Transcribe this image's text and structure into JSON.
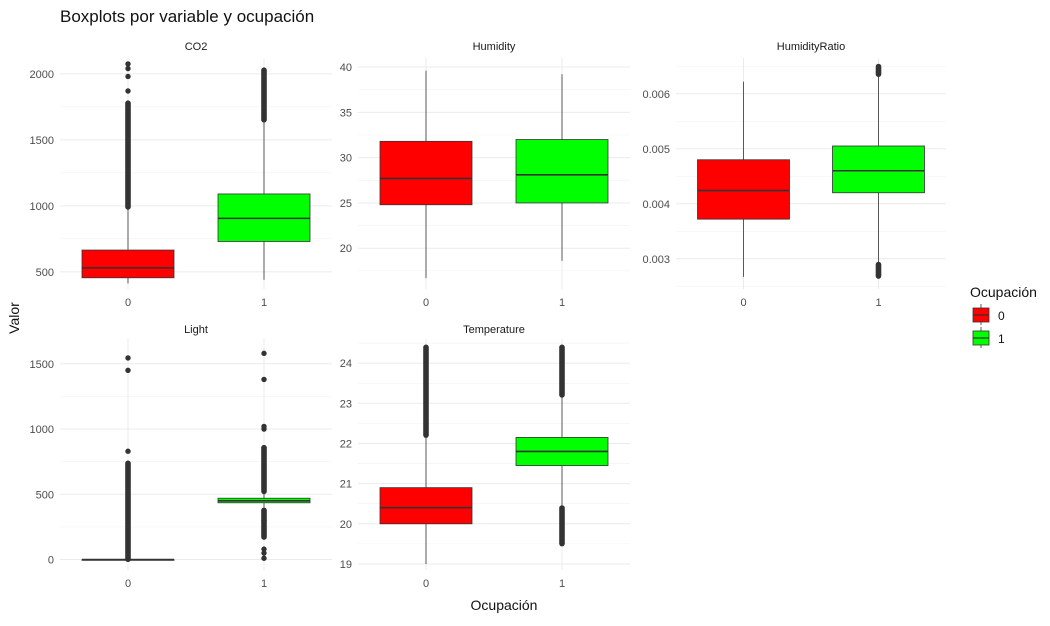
{
  "chart_data": {
    "type": "boxplot",
    "title": "Boxplots por variable y ocupación",
    "xlabel": "Ocupación",
    "ylabel": "Valor",
    "grid": true,
    "legend": {
      "title": "Ocupación",
      "placement": "right",
      "entries": [
        {
          "label": "0",
          "color": "#ff0000"
        },
        {
          "label": "1",
          "color": "#00ff00"
        }
      ]
    },
    "categories": [
      "0",
      "1"
    ],
    "panels": [
      {
        "name": "CO2",
        "ylim": [
          370,
          2120
        ],
        "yticks": [
          500,
          1000,
          1500,
          2000
        ],
        "yticklabels": [
          "500",
          "1000",
          "1500",
          "2000"
        ],
        "boxes": [
          {
            "group": "0",
            "color": "#ff0000",
            "min": 412,
            "q1": 455,
            "median": 530,
            "q3": 665,
            "max": 990,
            "outlier_ranges": [
              [
                990,
                1780
              ]
            ],
            "outliers": [
              1870,
              1980,
              2040,
              2075
            ]
          },
          {
            "group": "1",
            "color": "#00ff00",
            "min": 440,
            "q1": 730,
            "median": 905,
            "q3": 1090,
            "max": 1650,
            "outlier_ranges": [
              [
                1650,
                2030
              ]
            ],
            "outliers": []
          }
        ]
      },
      {
        "name": "Humidity",
        "ylim": [
          15.5,
          41
        ],
        "yticks": [
          20,
          25,
          30,
          35,
          40
        ],
        "yticklabels": [
          "20",
          "25",
          "30",
          "35",
          "40"
        ],
        "boxes": [
          {
            "group": "0",
            "color": "#ff0000",
            "min": 16.7,
            "q1": 24.8,
            "median": 27.7,
            "q3": 31.8,
            "max": 39.6,
            "outlier_ranges": [],
            "outliers": []
          },
          {
            "group": "1",
            "color": "#00ff00",
            "min": 18.6,
            "q1": 25.0,
            "median": 28.1,
            "q3": 32.0,
            "max": 39.2,
            "outlier_ranges": [],
            "outliers": []
          }
        ]
      },
      {
        "name": "HumidityRatio",
        "ylim": [
          0.00245,
          0.00665
        ],
        "yticks": [
          0.003,
          0.004,
          0.005,
          0.006
        ],
        "yticklabels": [
          "0.003",
          "0.004",
          "0.005",
          "0.006"
        ],
        "boxes": [
          {
            "group": "0",
            "color": "#ff0000",
            "min": 0.00267,
            "q1": 0.00372,
            "median": 0.00424,
            "q3": 0.0048,
            "max": 0.00622,
            "outlier_ranges": [],
            "outliers": []
          },
          {
            "group": "1",
            "color": "#00ff00",
            "min": 0.0029,
            "q1": 0.0042,
            "median": 0.0046,
            "q3": 0.00505,
            "max": 0.00635,
            "outlier_ranges": [
              [
                0.00635,
                0.0065
              ],
              [
                0.00268,
                0.0029
              ]
            ],
            "outliers": []
          }
        ]
      },
      {
        "name": "Light",
        "ylim": [
          -80,
          1690
        ],
        "yticks": [
          0,
          500,
          1000,
          1500
        ],
        "yticklabels": [
          "0",
          "500",
          "1000",
          "1500"
        ],
        "boxes": [
          {
            "group": "0",
            "color": "#ff0000",
            "min": 0,
            "q1": 0,
            "median": 0,
            "q3": 0,
            "max": 0,
            "outlier_ranges": [
              [
                0,
                740
              ]
            ],
            "outliers": [
              830,
              1450,
              1545
            ]
          },
          {
            "group": "1",
            "color": "#00ff00",
            "min": 400,
            "q1": 435,
            "median": 450,
            "q3": 470,
            "max": 520,
            "outlier_ranges": [
              [
                520,
                860
              ],
              [
                170,
                380
              ]
            ],
            "outliers": [
              1000,
              1020,
              1380,
              1580,
              300,
              80,
              50,
              10
            ]
          }
        ]
      },
      {
        "name": "Temperature",
        "ylim": [
          18.85,
          24.6
        ],
        "yticks": [
          19,
          20,
          21,
          22,
          23,
          24
        ],
        "yticklabels": [
          "19",
          "20",
          "21",
          "22",
          "23",
          "24"
        ],
        "boxes": [
          {
            "group": "0",
            "color": "#ff0000",
            "min": 19.0,
            "q1": 20.0,
            "median": 20.4,
            "q3": 20.9,
            "max": 22.2,
            "outlier_ranges": [
              [
                22.2,
                24.4
              ]
            ],
            "outliers": []
          },
          {
            "group": "1",
            "color": "#00ff00",
            "min": 20.4,
            "q1": 21.45,
            "median": 21.8,
            "q3": 22.15,
            "max": 23.2,
            "outlier_ranges": [
              [
                23.2,
                24.4
              ],
              [
                19.5,
                20.4
              ]
            ],
            "outliers": []
          }
        ]
      }
    ]
  }
}
